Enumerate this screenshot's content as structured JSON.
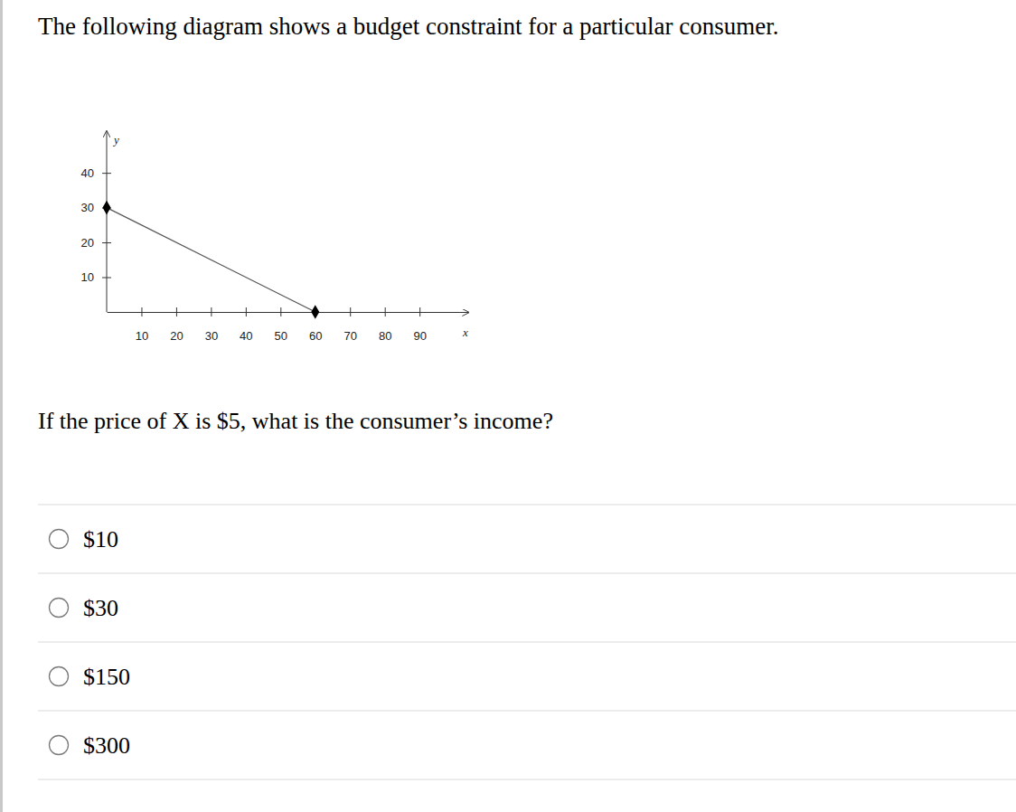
{
  "header": {
    "title": "The following diagram shows a budget constraint for a particular consumer."
  },
  "chart_data": {
    "type": "line",
    "x": [
      0,
      60
    ],
    "values": [
      30,
      0
    ],
    "color": "#555555",
    "marker": "diamond",
    "x_label": "x",
    "y_label": "y",
    "xlim": [
      0,
      104
    ],
    "ylim": [
      0,
      52
    ],
    "xticks": [
      10,
      20,
      30,
      40,
      50,
      60,
      70,
      80,
      90
    ],
    "yticks": [
      10,
      20,
      30,
      40
    ]
  },
  "question": {
    "text": "If the price of X is $5, what is the consumer’s income?"
  },
  "options": [
    "$10",
    "$30",
    "$150",
    "$300"
  ]
}
